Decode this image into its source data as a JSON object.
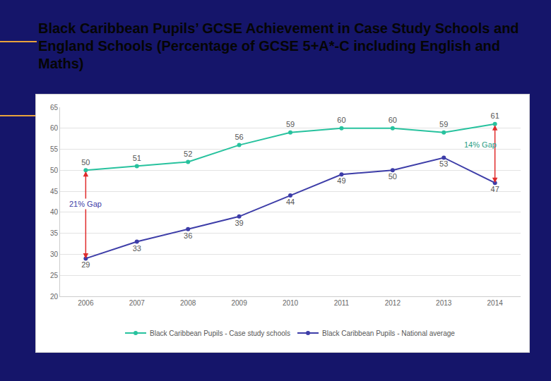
{
  "chart_data": {
    "type": "line",
    "title": "Black Caribbean Pupils’ GCSE Achievement in Case Study Schools and England Schools (Percentage of GCSE 5+A*-C including English and Maths)",
    "categories": [
      "2006",
      "2007",
      "2008",
      "2009",
      "2010",
      "2011",
      "2012",
      "2013",
      "2014"
    ],
    "series": [
      {
        "name": "Black Caribbean Pupils - Case study schools",
        "color": "#27c29e",
        "values": [
          50,
          51,
          52,
          56,
          59,
          60,
          60,
          59,
          61
        ]
      },
      {
        "name": "Black Caribbean Pupils - National average",
        "color": "#3d3da8",
        "values": [
          29,
          33,
          36,
          39,
          44,
          49,
          50,
          53,
          47
        ]
      }
    ],
    "ylim": [
      20,
      65
    ],
    "yticks": [
      20,
      25,
      30,
      35,
      40,
      45,
      50,
      55,
      60,
      65
    ],
    "grid": true,
    "legend": "bottom",
    "data_labels": true,
    "marker": "circle",
    "line_style": "solid",
    "annotations": [
      {
        "text": "21% Gap",
        "x": 0
      },
      {
        "text": "14% Gap",
        "x": 8
      }
    ]
  }
}
